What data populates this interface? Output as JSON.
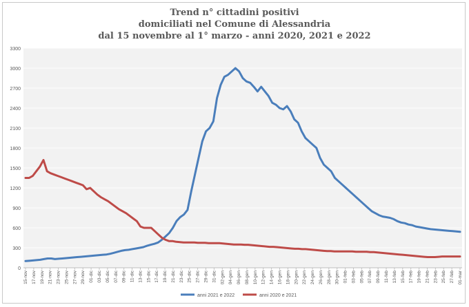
{
  "chart_data": {
    "type": "line",
    "title_lines": [
      "Trend n° cittadini positivi",
      "domiciliati nel Comune di Alessandria",
      "dal 15 novembre al 1° marzo - anni 2020, 2021 e 2022"
    ],
    "xlabel": "",
    "ylabel": "",
    "ylim": [
      0,
      3300
    ],
    "y_ticks": [
      0,
      300,
      600,
      900,
      1200,
      1500,
      1800,
      2100,
      2400,
      2700,
      3000,
      3300
    ],
    "grid": true,
    "legend_position": "bottom",
    "x_ticks": [
      "15-nov",
      "17-nov",
      "19-nov",
      "21-nov",
      "23-nov",
      "25-nov",
      "27-nov",
      "29-nov",
      "01-dic",
      "03-dic",
      "05-dic",
      "07-dic",
      "09-dic",
      "11-dic",
      "13-dic",
      "15-dic",
      "17-dic",
      "19-dic",
      "21-dic",
      "23-dic",
      "25-dic",
      "27-dic",
      "29-dic",
      "31-dic",
      "02-gen",
      "04-gen",
      "06-gen",
      "08-gen",
      "10-gen",
      "12-gen",
      "14-gen",
      "16-gen",
      "18-gen",
      "20-gen",
      "22-gen",
      "24-gen",
      "26-gen",
      "28-gen",
      "30-gen",
      "01-feb",
      "03-feb",
      "05-feb",
      "07-feb",
      "09-feb",
      "11-feb",
      "13-feb",
      "15-feb",
      "17-feb",
      "19-feb",
      "21-feb",
      "23-feb",
      "25-feb",
      "27-feb",
      "01-mar"
    ],
    "series": [
      {
        "name": "anni 2021 e 2022",
        "color": "#4a7ebb",
        "values": [
          100,
          105,
          110,
          115,
          120,
          130,
          140,
          140,
          130,
          135,
          140,
          145,
          150,
          155,
          160,
          165,
          170,
          175,
          180,
          185,
          190,
          195,
          200,
          210,
          225,
          240,
          255,
          265,
          270,
          280,
          290,
          300,
          310,
          330,
          345,
          360,
          380,
          420,
          470,
          520,
          600,
          700,
          760,
          800,
          870,
          1150,
          1400,
          1650,
          1900,
          2050,
          2100,
          2200,
          2550,
          2750,
          2870,
          2900,
          2950,
          3000,
          2950,
          2850,
          2800,
          2780,
          2720,
          2650,
          2720,
          2650,
          2580,
          2480,
          2450,
          2400,
          2380,
          2430,
          2350,
          2230,
          2180,
          2050,
          1950,
          1900,
          1850,
          1800,
          1650,
          1550,
          1500,
          1450,
          1350,
          1300,
          1250,
          1200,
          1150,
          1100,
          1050,
          1000,
          950,
          900,
          850,
          820,
          790,
          770,
          760,
          750,
          730,
          700,
          680,
          670,
          650,
          640,
          620,
          610,
          600,
          590,
          580,
          575,
          570,
          565,
          560,
          555,
          550,
          545,
          540
        ]
      },
      {
        "name": "anni 2020 e 2021",
        "color": "#be4b48",
        "values": [
          1350,
          1350,
          1380,
          1450,
          1520,
          1620,
          1450,
          1420,
          1400,
          1380,
          1360,
          1340,
          1320,
          1300,
          1280,
          1260,
          1240,
          1180,
          1200,
          1150,
          1100,
          1060,
          1030,
          1000,
          960,
          920,
          880,
          850,
          820,
          780,
          740,
          700,
          620,
          600,
          600,
          600,
          550,
          500,
          450,
          420,
          400,
          400,
          390,
          385,
          380,
          380,
          380,
          380,
          375,
          375,
          375,
          370,
          370,
          370,
          370,
          365,
          360,
          355,
          350,
          350,
          350,
          345,
          345,
          340,
          335,
          330,
          325,
          320,
          315,
          315,
          310,
          305,
          300,
          295,
          290,
          285,
          285,
          280,
          280,
          275,
          270,
          265,
          260,
          255,
          250,
          250,
          245,
          245,
          245,
          245,
          245,
          245,
          240,
          240,
          240,
          240,
          235,
          235,
          230,
          225,
          220,
          215,
          210,
          205,
          200,
          195,
          190,
          185,
          180,
          175,
          170,
          165,
          160,
          160,
          160,
          165,
          170,
          170,
          170,
          170,
          170,
          170
        ]
      }
    ]
  }
}
